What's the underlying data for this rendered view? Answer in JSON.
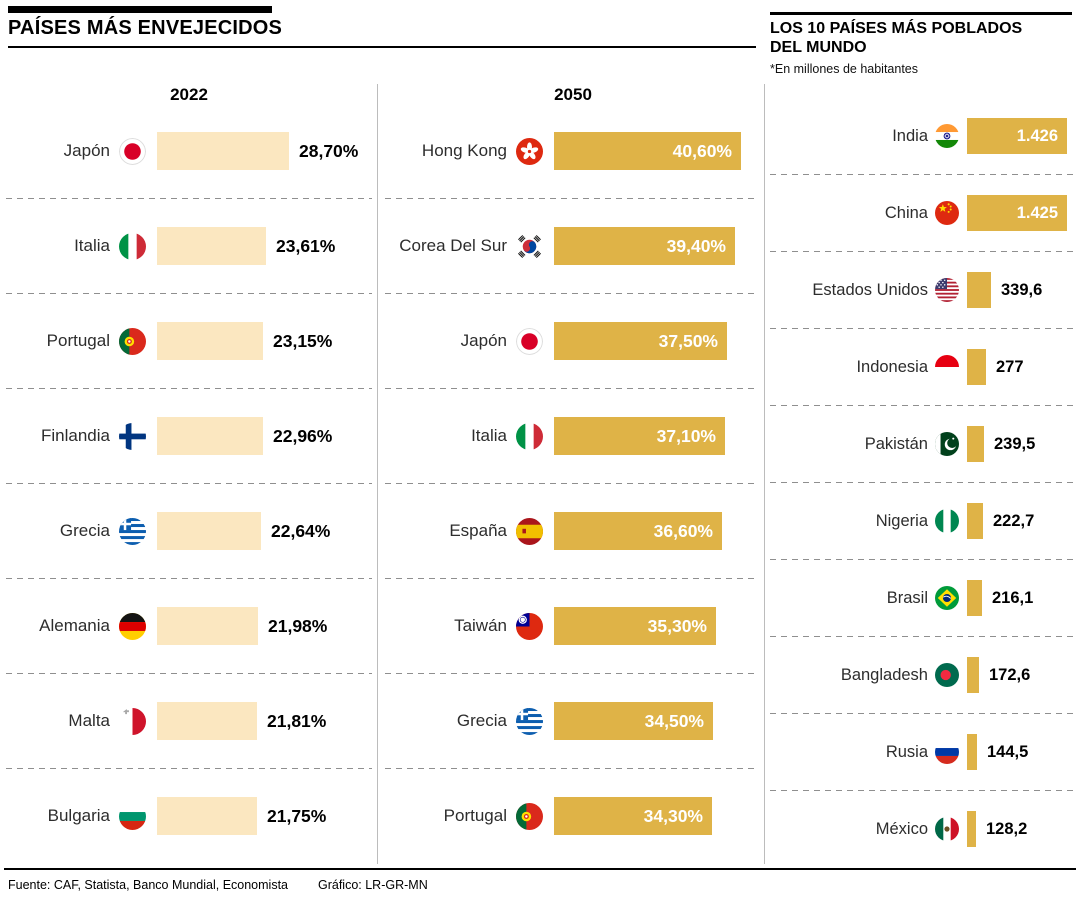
{
  "page": {
    "title": "PAÍSES MÁS ENVEJECIDOS"
  },
  "aged": {
    "columns": [
      {
        "year": "2022",
        "rows": [
          {
            "country": "Japón",
            "flag": "japan",
            "value": 28.7,
            "display": "28,70%"
          },
          {
            "country": "Italia",
            "flag": "italy",
            "value": 23.61,
            "display": "23,61%"
          },
          {
            "country": "Portugal",
            "flag": "portugal",
            "value": 23.15,
            "display": "23,15%"
          },
          {
            "country": "Finlandia",
            "flag": "finland",
            "value": 22.96,
            "display": "22,96%"
          },
          {
            "country": "Grecia",
            "flag": "greece",
            "value": 22.64,
            "display": "22,64%"
          },
          {
            "country": "Alemania",
            "flag": "germany",
            "value": 21.98,
            "display": "21,98%"
          },
          {
            "country": "Malta",
            "flag": "malta",
            "value": 21.81,
            "display": "21,81%"
          },
          {
            "country": "Bulgaria",
            "flag": "bulgaria",
            "value": 21.75,
            "display": "21,75%"
          }
        ]
      },
      {
        "year": "2050",
        "rows": [
          {
            "country": "Hong Kong",
            "flag": "hongkong",
            "value": 40.6,
            "display": "40,60%"
          },
          {
            "country": "Corea Del Sur",
            "flag": "southkorea",
            "value": 39.4,
            "display": "39,40%"
          },
          {
            "country": "Japón",
            "flag": "japan",
            "value": 37.5,
            "display": "37,50%"
          },
          {
            "country": "Italia",
            "flag": "italy",
            "value": 37.1,
            "display": "37,10%"
          },
          {
            "country": "España",
            "flag": "spain",
            "value": 36.6,
            "display": "36,60%"
          },
          {
            "country": "Taiwán",
            "flag": "taiwan",
            "value": 35.3,
            "display": "35,30%"
          },
          {
            "country": "Grecia",
            "flag": "greece",
            "value": 34.5,
            "display": "34,50%"
          },
          {
            "country": "Portugal",
            "flag": "portugal",
            "value": 34.3,
            "display": "34,30%"
          }
        ]
      }
    ]
  },
  "populated": {
    "title_line1": "LOS 10 PAÍSES MÁS POBLADOS",
    "title_line2": "DEL MUNDO",
    "subtitle": "*En millones de habitantes",
    "rows": [
      {
        "country": "India",
        "flag": "india",
        "value": 1426,
        "display": "1.426"
      },
      {
        "country": "China",
        "flag": "china",
        "value": 1425,
        "display": "1.425"
      },
      {
        "country": "Estados Unidos",
        "flag": "usa",
        "value": 339.6,
        "display": "339,6"
      },
      {
        "country": "Indonesia",
        "flag": "indonesia",
        "value": 277,
        "display": "277"
      },
      {
        "country": "Pakistán",
        "flag": "pakistan",
        "value": 239.5,
        "display": "239,5"
      },
      {
        "country": "Nigeria",
        "flag": "nigeria",
        "value": 222.7,
        "display": "222,7"
      },
      {
        "country": "Brasil",
        "flag": "brazil",
        "value": 216.1,
        "display": "216,1"
      },
      {
        "country": "Bangladesh",
        "flag": "bangladesh",
        "value": 172.6,
        "display": "172,6"
      },
      {
        "country": "Rusia",
        "flag": "russia",
        "value": 144.5,
        "display": "144,5"
      },
      {
        "country": "México",
        "flag": "mexico",
        "value": 128.2,
        "display": "128,2"
      }
    ]
  },
  "footer": {
    "source": "Fuente: CAF, Statista, Banco Mundial,  Economista",
    "credit": "Gráfico: LR-GR-MN"
  },
  "colors": {
    "bar_cream": "#FBE7C0",
    "bar_gold": "#DFB347",
    "text_black": "#000000",
    "value_white": "#FFFFFF"
  },
  "chart_data": [
    {
      "type": "bar",
      "orientation": "horizontal",
      "title": "Países más envejecidos — 2022",
      "unit": "%",
      "categories": [
        "Japón",
        "Italia",
        "Portugal",
        "Finlandia",
        "Grecia",
        "Alemania",
        "Malta",
        "Bulgaria"
      ],
      "values": [
        28.7,
        23.61,
        23.15,
        22.96,
        22.64,
        21.98,
        21.81,
        21.75
      ],
      "value_labels": [
        "28,70%",
        "23,61%",
        "23,15%",
        "22,96%",
        "22,64%",
        "21,98%",
        "21,81%",
        "21,75%"
      ],
      "bar_color": "#FBE7C0",
      "value_label_position": "outside-right",
      "grid": false,
      "legend": false
    },
    {
      "type": "bar",
      "orientation": "horizontal",
      "title": "Países más envejecidos — 2050",
      "unit": "%",
      "categories": [
        "Hong Kong",
        "Corea Del Sur",
        "Japón",
        "Italia",
        "España",
        "Taiwán",
        "Grecia",
        "Portugal"
      ],
      "values": [
        40.6,
        39.4,
        37.5,
        37.1,
        36.6,
        35.3,
        34.5,
        34.3
      ],
      "value_labels": [
        "40,60%",
        "39,40%",
        "37,50%",
        "37,10%",
        "36,60%",
        "35,30%",
        "34,50%",
        "34,30%"
      ],
      "bar_color": "#DFB347",
      "value_label_position": "inside-right",
      "grid": false,
      "legend": false
    },
    {
      "type": "bar",
      "orientation": "horizontal",
      "title": "Los 10 países más poblados del mundo",
      "unit": "millones de habitantes",
      "categories": [
        "India",
        "China",
        "Estados Unidos",
        "Indonesia",
        "Pakistán",
        "Nigeria",
        "Brasil",
        "Bangladesh",
        "Rusia",
        "México"
      ],
      "values": [
        1426,
        1425,
        339.6,
        277,
        239.5,
        222.7,
        216.1,
        172.6,
        144.5,
        128.2
      ],
      "value_labels": [
        "1.426",
        "1.425",
        "339,6",
        "277",
        "239,5",
        "222,7",
        "216,1",
        "172,6",
        "144,5",
        "128,2"
      ],
      "bar_color": "#DFB347",
      "value_label_position": "auto",
      "grid": false,
      "legend": false
    }
  ]
}
